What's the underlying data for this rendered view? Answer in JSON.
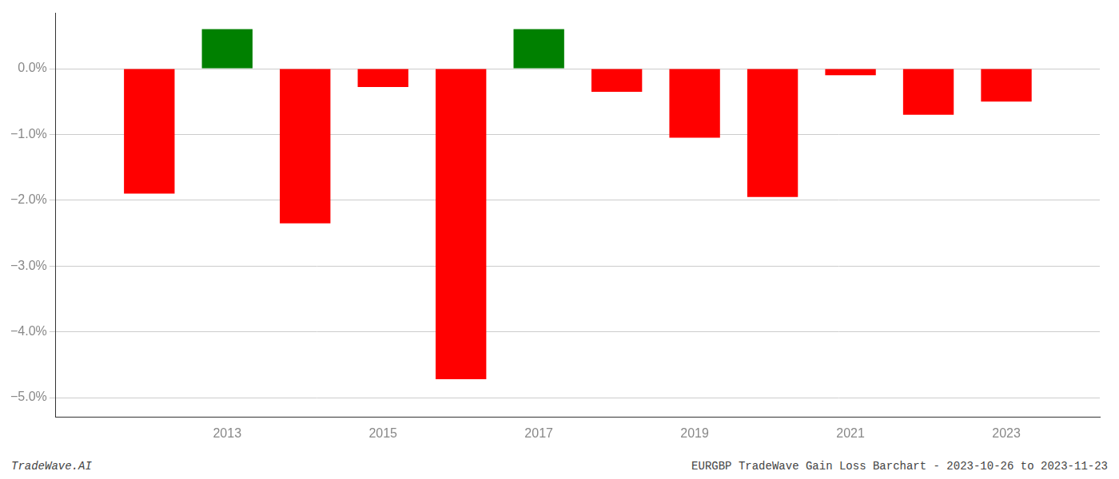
{
  "chart_data": {
    "type": "bar",
    "x": [
      2012,
      2013,
      2014,
      2015,
      2016,
      2017,
      2018,
      2019,
      2020,
      2021,
      2022,
      2023
    ],
    "values": [
      -1.9,
      0.6,
      -2.35,
      -0.28,
      -4.72,
      0.6,
      -0.35,
      -1.05,
      -1.95,
      -0.1,
      -0.7,
      -0.5
    ],
    "colors": [
      "#ff0000",
      "#008000",
      "#ff0000",
      "#ff0000",
      "#ff0000",
      "#008000",
      "#ff0000",
      "#ff0000",
      "#ff0000",
      "#ff0000",
      "#ff0000",
      "#ff0000"
    ],
    "xlim": [
      2010.8,
      2024.2
    ],
    "xticks": [
      2013,
      2015,
      2017,
      2019,
      2021,
      2023
    ],
    "ylim": [
      -5.3,
      0.85
    ],
    "yticks": [
      {
        "value": 0.0,
        "label": "0.0%"
      },
      {
        "value": -1.0,
        "label": "−1.0%"
      },
      {
        "value": -2.0,
        "label": "−2.0%"
      },
      {
        "value": -3.0,
        "label": "−3.0%"
      },
      {
        "value": -4.0,
        "label": "−4.0%"
      },
      {
        "value": -5.0,
        "label": "−5.0%"
      }
    ],
    "grid": "y",
    "annotations": [
      "TradeWave.AI",
      "EURGBP TradeWave Gain Loss Barchart - 2023-10-26 to 2023-11-23"
    ]
  }
}
